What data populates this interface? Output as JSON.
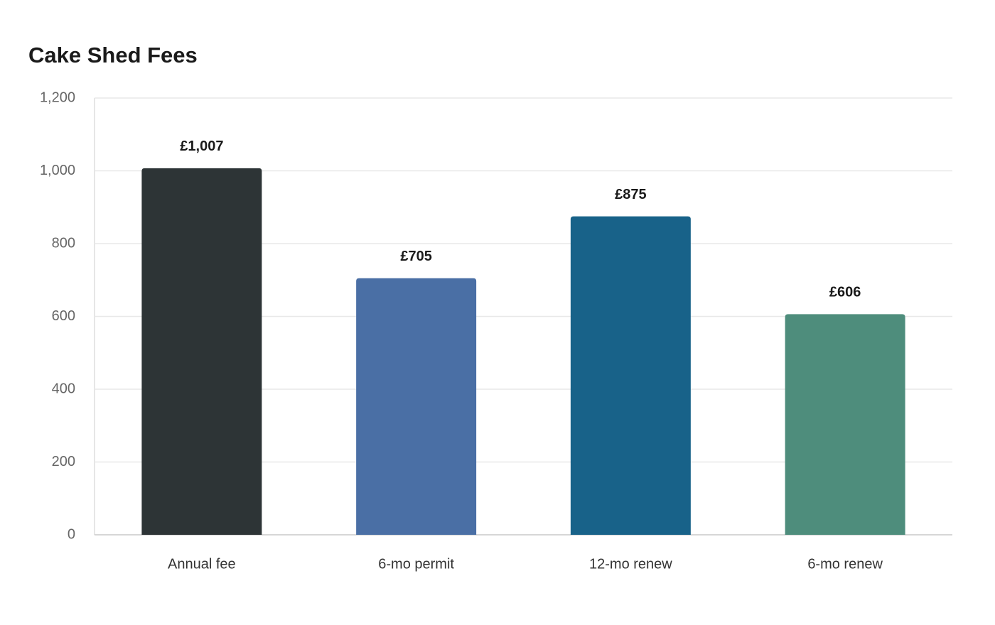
{
  "chart_data": {
    "type": "bar",
    "title": "Cake Shed Fees",
    "categories": [
      "Annual fee",
      "6-mo permit",
      "12-mo renew",
      "6-mo renew"
    ],
    "values": [
      1007,
      705,
      875,
      606
    ],
    "value_labels": [
      "£1,007",
      "£705",
      "£875",
      "£606"
    ],
    "colors": [
      "#2d3436",
      "#4a6fa5",
      "#186289",
      "#4e8d7c"
    ],
    "ylim": [
      0,
      1200
    ],
    "yticks": [
      0,
      200,
      400,
      600,
      800,
      {
        "value": 1000,
        "label": "1,000"
      },
      {
        "value": 1200,
        "label": "1,200"
      }
    ],
    "grid": true
  }
}
